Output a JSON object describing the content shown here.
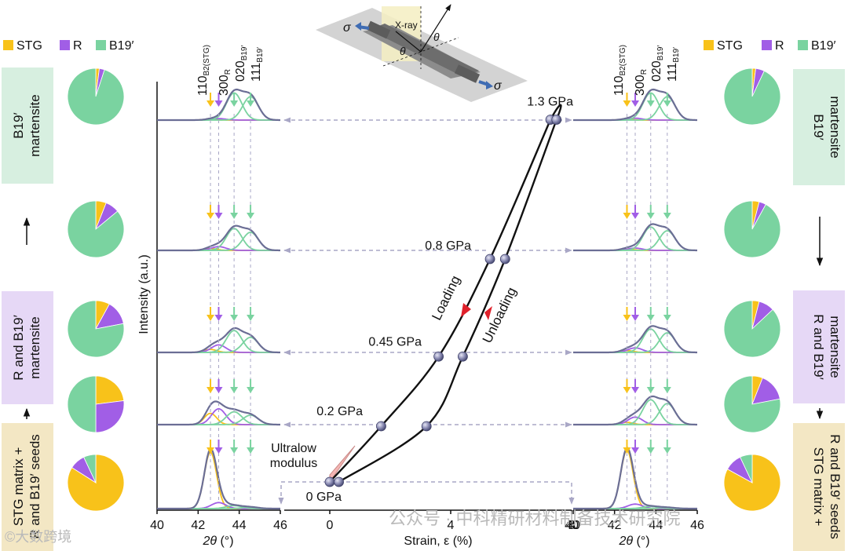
{
  "legend": {
    "items": [
      {
        "label": "STG",
        "color": "#f8c21a"
      },
      {
        "label": "R",
        "color": "#a15ee6"
      },
      {
        "label": "B19′",
        "color": "#7ad3a0"
      }
    ]
  },
  "colors": {
    "stg": "#f8c21a",
    "r": "#a15ee6",
    "b19": "#7ad3a0",
    "total": "#6b6e95",
    "box_green": "#d7efe0",
    "box_purple": "#e6d8f6",
    "box_tan": "#f3e7c4",
    "dash": "#a9a7c6",
    "arrow_red": "#e0212b",
    "modulus_fill": "#f4b5b3"
  },
  "left_boxes": {
    "b19": {
      "line1": "B19′",
      "line2": "martensite"
    },
    "rb19": {
      "line1": "R and B19′",
      "line2": "martensite"
    },
    "stg": {
      "line1": "STG matrix +",
      "line2": "R and B19′ seeds"
    }
  },
  "right_boxes": {
    "b19": {
      "line1": "B19′",
      "line2": "martensite"
    },
    "rb19": {
      "line1": "R and B19′",
      "line2": "martensite"
    },
    "stg": {
      "line1": "STG matrix +",
      "line2": "R and B19′ seeds"
    }
  },
  "pies": {
    "left": [
      {
        "stg": 2,
        "r": 3,
        "b19": 95
      },
      {
        "stg": 6,
        "r": 8,
        "b19": 86
      },
      {
        "stg": 8,
        "r": 14,
        "b19": 78
      },
      {
        "stg": 23,
        "r": 27,
        "b19": 50
      },
      {
        "stg": 84,
        "r": 9,
        "b19": 7
      }
    ],
    "right": [
      {
        "stg": 2,
        "r": 5,
        "b19": 93
      },
      {
        "stg": 4,
        "r": 4,
        "b19": 92
      },
      {
        "stg": 4,
        "r": 9,
        "b19": 87
      },
      {
        "stg": 6,
        "r": 16,
        "b19": 78
      },
      {
        "stg": 83,
        "r": 10,
        "b19": 7
      }
    ]
  },
  "peak_labels": {
    "p110": {
      "main": "110",
      "sub": "B2(STG)"
    },
    "p300": {
      "main": "300",
      "sub": "R"
    },
    "p020": {
      "main": "020",
      "sub": "B19′"
    },
    "p111": {
      "main": "111",
      "sub": "B19′"
    }
  },
  "xrd_axis": {
    "ticks": [
      "40",
      "42",
      "44",
      "46"
    ],
    "xlabel_theta": "2θ",
    "xlabel_unit": " (°)"
  },
  "y_axis_label": "Intensity (a.u.)",
  "chart_data": {
    "type": "line",
    "title": "",
    "xlabel": "Strain, ε (%)",
    "ylabel": "",
    "xlim": [
      -0.5,
      8.5
    ],
    "x_ticks": [
      "0",
      "4",
      "8"
    ],
    "stress_labels": [
      "1.3 GPa",
      "0.8 GPa",
      "0.45 GPa",
      "0.2 GPa",
      "0 GPa"
    ],
    "series": [
      {
        "name": "Loading",
        "points": [
          [
            0,
            0
          ],
          [
            1.7,
            0.2
          ],
          [
            3.6,
            0.45
          ],
          [
            5.3,
            0.8
          ],
          [
            7.3,
            1.3
          ]
        ]
      },
      {
        "name": "Unloading",
        "points": [
          [
            7.5,
            1.3
          ],
          [
            5.8,
            0.8
          ],
          [
            4.4,
            0.45
          ],
          [
            3.2,
            0.2
          ],
          [
            0.3,
            0
          ]
        ]
      }
    ]
  },
  "stress_strain_labels": {
    "loading": "Loading",
    "unloading": "Unloading",
    "ultralow_line1": "Ultralow",
    "ultralow_line2": "modulus"
  },
  "inset": {
    "xray": "X-ray",
    "theta": "θ",
    "sigma": "σ"
  },
  "watermark": {
    "right_text": "公众号 · 中科精研材料制备技术研究院",
    "left_text": "©大数跨境"
  }
}
